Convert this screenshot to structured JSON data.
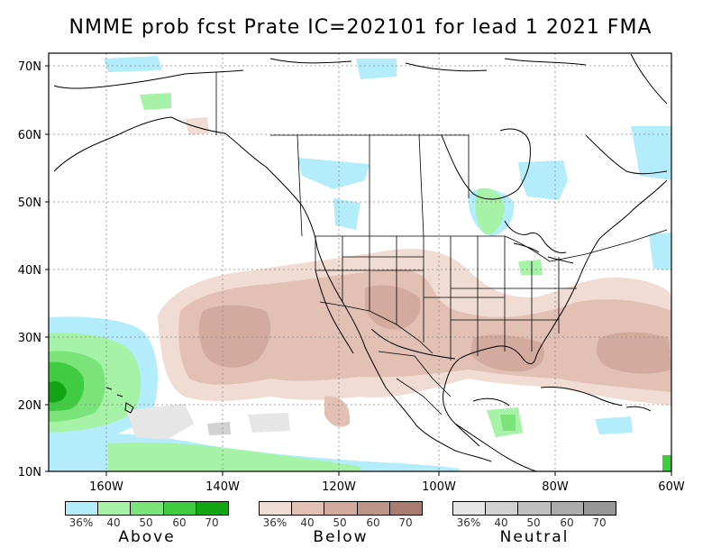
{
  "title": "NMME prob fcst Prate IC=202101 for lead 1 2021 FMA",
  "axes": {
    "lat_labels": [
      "70N",
      "60N",
      "50N",
      "40N",
      "30N",
      "20N",
      "10N"
    ],
    "lon_labels": [
      "160W",
      "140W",
      "120W",
      "100W",
      "80W",
      "60W"
    ]
  },
  "colors": {
    "ocean": "#ffffff",
    "land": "#ffffff",
    "border": "#000000",
    "grid": "#888888",
    "above": [
      "#b3ecfb",
      "#a6f2a6",
      "#7ae37a",
      "#40cc40",
      "#12a412"
    ],
    "below": [
      "#f0dcd2",
      "#e2c0b4",
      "#d2aa9e",
      "#bd9488",
      "#a87c70"
    ],
    "neutral": [
      "#e6e6e6",
      "#d2d2d2",
      "#bfbfbf",
      "#ababab",
      "#979797"
    ]
  },
  "legends": [
    {
      "key": "above",
      "title": "Above",
      "ticks": [
        "36%",
        "40",
        "50",
        "60",
        "70"
      ]
    },
    {
      "key": "below",
      "title": "Below",
      "ticks": [
        "36%",
        "40",
        "50",
        "60",
        "70"
      ]
    },
    {
      "key": "neutral",
      "title": "Neutral",
      "ticks": [
        "36%",
        "40",
        "50",
        "60",
        "70"
      ]
    }
  ]
}
